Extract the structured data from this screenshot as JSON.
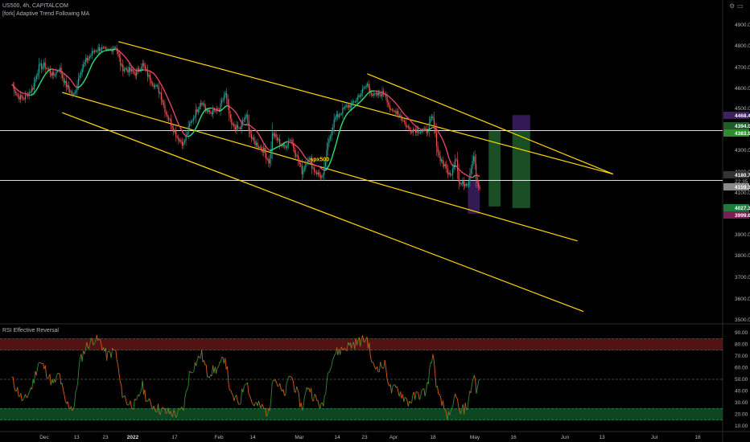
{
  "header": {
    "symbol_line": "US500, 4h, CAPITALCOM",
    "indicator_1": "[fork] Adaptive Trend Following MA",
    "indicator_2": "RSI Effective Reversal"
  },
  "icons": {
    "settings": "gear-icon",
    "scale": "scale-icon"
  },
  "colors": {
    "background": "#000000",
    "candle_up": "#26a69a",
    "candle_down": "#ef5350",
    "ma_up": "#2ee07a",
    "ma_down": "#e0456b",
    "channel": "#ffd700",
    "hline": "#ffffff",
    "rsi_up": "#2e8b2e",
    "rsi_down": "#e05a1a",
    "ob_band": "#5a1515",
    "os_band": "#0f4d26",
    "zone_green": "#1e5c2a",
    "zone_purple": "#3d1f63"
  },
  "chart_data": [
    {
      "type": "candlestick",
      "title": "US500, 4h, CAPITALCOM",
      "annotation": "spx500",
      "x_labels": [
        "Dec",
        "13",
        "23",
        "2022",
        "17",
        "Feb",
        "14",
        "Mar",
        "14",
        "23",
        "Apr",
        "18",
        "May",
        "16",
        "Jun",
        "13",
        "Jul",
        "18"
      ],
      "y_ticks": [
        3500,
        3600,
        3700,
        3800,
        3900,
        4100,
        4200,
        4300,
        4500,
        4600,
        4700,
        4800,
        4900
      ],
      "ylim": [
        3500,
        4960
      ],
      "price_labels": [
        "4468.4",
        "4394.0",
        "4383.9",
        "4180.7",
        "4159.32",
        "4027.3",
        "3999.6"
      ],
      "side_labels": [
        "22:35"
      ],
      "price_series": [
        [
          "2021-11-29",
          4620
        ],
        [
          "2021-12-01",
          4560
        ],
        [
          "2021-12-03",
          4550
        ],
        [
          "2021-12-06",
          4600
        ],
        [
          "2021-12-08",
          4700
        ],
        [
          "2021-12-10",
          4710
        ],
        [
          "2021-12-13",
          4660
        ],
        [
          "2021-12-15",
          4700
        ],
        [
          "2021-12-17",
          4620
        ],
        [
          "2021-12-20",
          4560
        ],
        [
          "2021-12-22",
          4680
        ],
        [
          "2021-12-24",
          4730
        ],
        [
          "2021-12-27",
          4780
        ],
        [
          "2021-12-29",
          4790
        ],
        [
          "2021-12-31",
          4770
        ],
        [
          "2022-01-03",
          4800
        ],
        [
          "2022-01-05",
          4700
        ],
        [
          "2022-01-07",
          4690
        ],
        [
          "2022-01-10",
          4670
        ],
        [
          "2022-01-12",
          4720
        ],
        [
          "2022-01-14",
          4660
        ],
        [
          "2022-01-18",
          4580
        ],
        [
          "2022-01-20",
          4480
        ],
        [
          "2022-01-24",
          4360
        ],
        [
          "2022-01-26",
          4330
        ],
        [
          "2022-01-28",
          4420
        ],
        [
          "2022-02-01",
          4540
        ],
        [
          "2022-02-03",
          4480
        ],
        [
          "2022-02-07",
          4490
        ],
        [
          "2022-02-09",
          4580
        ],
        [
          "2022-02-11",
          4420
        ],
        [
          "2022-02-14",
          4400
        ],
        [
          "2022-02-16",
          4470
        ],
        [
          "2022-02-18",
          4350
        ],
        [
          "2022-02-22",
          4300
        ],
        [
          "2022-02-24",
          4240
        ],
        [
          "2022-02-25",
          4380
        ],
        [
          "2022-03-01",
          4310
        ],
        [
          "2022-03-03",
          4360
        ],
        [
          "2022-03-07",
          4200
        ],
        [
          "2022-03-09",
          4270
        ],
        [
          "2022-03-11",
          4210
        ],
        [
          "2022-03-14",
          4170
        ],
        [
          "2022-03-16",
          4350
        ],
        [
          "2022-03-18",
          4450
        ],
        [
          "2022-03-22",
          4510
        ],
        [
          "2022-03-24",
          4520
        ],
        [
          "2022-03-29",
          4620
        ],
        [
          "2022-03-31",
          4560
        ],
        [
          "2022-04-04",
          4580
        ],
        [
          "2022-04-06",
          4480
        ],
        [
          "2022-04-08",
          4490
        ],
        [
          "2022-04-12",
          4400
        ],
        [
          "2022-04-14",
          4400
        ],
        [
          "2022-04-18",
          4390
        ],
        [
          "2022-04-20",
          4460
        ],
        [
          "2022-04-22",
          4280
        ],
        [
          "2022-04-26",
          4180
        ],
        [
          "2022-04-28",
          4280
        ],
        [
          "2022-04-29",
          4140
        ],
        [
          "2022-05-02",
          4150
        ],
        [
          "2022-05-04",
          4290
        ],
        [
          "2022-05-05",
          4140
        ],
        [
          "2022-05-06",
          4120
        ]
      ],
      "channel_lines": [
        {
          "from": [
            "2022-01-04",
            4820
          ],
          "to": [
            "2022-06-20",
            4190
          ]
        },
        {
          "from": [
            "2021-12-16",
            4580
          ],
          "to": [
            "2022-06-08",
            3870
          ]
        },
        {
          "from": [
            "2021-12-16",
            4480
          ],
          "to": [
            "2022-06-10",
            3540
          ]
        },
        {
          "from": [
            "2022-03-29",
            4670
          ],
          "to": [
            "2022-06-20",
            4190
          ]
        }
      ],
      "horizontal_lines": [
        4394.0,
        4159.32
      ],
      "zones": [
        {
          "color": "green",
          "from": "2022-05-09",
          "to": "2022-05-13",
          "low": 4035,
          "high": 4394
        },
        {
          "color": "purple",
          "from": "2022-05-02",
          "to": "2022-05-06",
          "low": 3999.6,
          "high": 4159.32
        },
        {
          "color": "purple",
          "from": "2022-05-17",
          "to": "2022-05-23",
          "low": 4394,
          "high": 4468.4
        },
        {
          "color": "green",
          "from": "2022-05-17",
          "to": "2022-05-23",
          "low": 4027.3,
          "high": 4394
        }
      ]
    },
    {
      "type": "line",
      "title": "RSI Effective Reversal",
      "y_ticks": [
        10,
        20,
        30,
        40,
        50,
        60,
        70,
        80,
        90
      ],
      "ylim": [
        10,
        92
      ],
      "levels": [
        85,
        75,
        50,
        25,
        15
      ],
      "bands": [
        {
          "from": 75,
          "to": 85,
          "name": "overbought"
        },
        {
          "from": 15,
          "to": 25,
          "name": "oversold"
        }
      ],
      "rsi_series": [
        [
          "2021-11-29",
          50
        ],
        [
          "2021-12-01",
          40
        ],
        [
          "2021-12-03",
          30
        ],
        [
          "2021-12-06",
          45
        ],
        [
          "2021-12-08",
          65
        ],
        [
          "2021-12-10",
          60
        ],
        [
          "2021-12-13",
          45
        ],
        [
          "2021-12-15",
          55
        ],
        [
          "2021-12-17",
          30
        ],
        [
          "2021-12-20",
          25
        ],
        [
          "2021-12-22",
          65
        ],
        [
          "2021-12-24",
          78
        ],
        [
          "2021-12-27",
          85
        ],
        [
          "2021-12-29",
          82
        ],
        [
          "2021-12-31",
          70
        ],
        [
          "2022-01-03",
          75
        ],
        [
          "2022-01-05",
          40
        ],
        [
          "2022-01-07",
          30
        ],
        [
          "2022-01-10",
          28
        ],
        [
          "2022-01-12",
          45
        ],
        [
          "2022-01-14",
          30
        ],
        [
          "2022-01-18",
          24
        ],
        [
          "2022-01-20",
          22
        ],
        [
          "2022-01-24",
          20
        ],
        [
          "2022-01-26",
          25
        ],
        [
          "2022-01-28",
          55
        ],
        [
          "2022-02-01",
          72
        ],
        [
          "2022-02-03",
          55
        ],
        [
          "2022-02-07",
          60
        ],
        [
          "2022-02-09",
          70
        ],
        [
          "2022-02-11",
          35
        ],
        [
          "2022-02-14",
          30
        ],
        [
          "2022-02-16",
          52
        ],
        [
          "2022-02-18",
          30
        ],
        [
          "2022-02-22",
          25
        ],
        [
          "2022-02-24",
          20
        ],
        [
          "2022-02-25",
          55
        ],
        [
          "2022-03-01",
          35
        ],
        [
          "2022-03-03",
          55
        ],
        [
          "2022-03-07",
          25
        ],
        [
          "2022-03-09",
          45
        ],
        [
          "2022-03-11",
          35
        ],
        [
          "2022-03-14",
          25
        ],
        [
          "2022-03-16",
          60
        ],
        [
          "2022-03-18",
          72
        ],
        [
          "2022-03-22",
          78
        ],
        [
          "2022-03-24",
          80
        ],
        [
          "2022-03-29",
          85
        ],
        [
          "2022-03-31",
          60
        ],
        [
          "2022-04-04",
          62
        ],
        [
          "2022-04-06",
          40
        ],
        [
          "2022-04-08",
          42
        ],
        [
          "2022-04-12",
          30
        ],
        [
          "2022-04-14",
          35
        ],
        [
          "2022-04-18",
          40
        ],
        [
          "2022-04-20",
          72
        ],
        [
          "2022-04-22",
          35
        ],
        [
          "2022-04-26",
          15
        ],
        [
          "2022-04-28",
          40
        ],
        [
          "2022-04-29",
          20
        ],
        [
          "2022-05-02",
          28
        ],
        [
          "2022-05-04",
          55
        ],
        [
          "2022-05-05",
          40
        ],
        [
          "2022-05-06",
          50
        ]
      ]
    }
  ]
}
